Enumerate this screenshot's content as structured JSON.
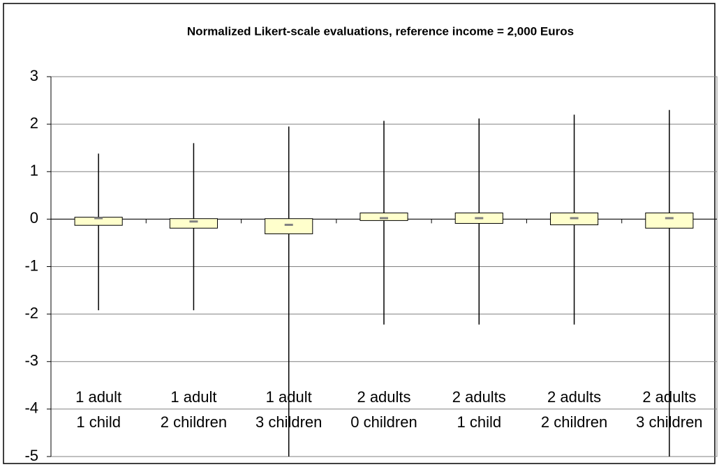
{
  "chart_data": {
    "type": "box",
    "title": "Normalized Likert-scale evaluations, reference income = 2,000 Euros",
    "categories": [
      [
        "1 adult",
        "1 child"
      ],
      [
        "1 adult",
        "2 children"
      ],
      [
        "1 adult",
        "3 children"
      ],
      [
        "2 adults",
        "0 children"
      ],
      [
        "2 adults",
        "1 child"
      ],
      [
        "2 adults",
        "2 children"
      ],
      [
        "2 adults",
        "3 children"
      ]
    ],
    "high": [
      1.38,
      1.6,
      1.95,
      2.07,
      2.12,
      2.2,
      2.3
    ],
    "low": [
      -1.92,
      -1.92,
      -5,
      -2.22,
      -2.22,
      -2.22,
      -5
    ],
    "box_top": [
      0.04,
      0.01,
      0.01,
      0.13,
      0.13,
      0.13,
      0.13
    ],
    "box_bottom": [
      -0.13,
      -0.19,
      -0.31,
      -0.03,
      -0.09,
      -0.12,
      -0.19
    ],
    "median": [
      0.02,
      -0.05,
      -0.12,
      0.02,
      0.02,
      0.02,
      0.02
    ],
    "box_color": "#ffffcc",
    "median_color": "#808080",
    "ylim": [
      -5,
      3
    ],
    "yticks": [
      -5,
      -4,
      -3,
      -2,
      -1,
      0,
      1,
      2,
      3
    ],
    "grid": true
  }
}
